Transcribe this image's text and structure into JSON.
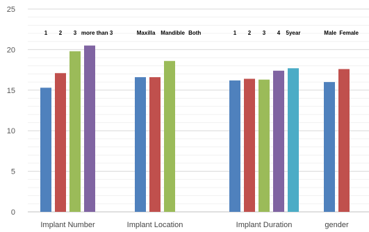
{
  "chart_data": {
    "type": "bar",
    "ylim": [
      0,
      25
    ],
    "yticks": [
      0,
      5,
      10,
      15,
      20,
      25
    ],
    "grid": true,
    "minor_grid": true,
    "xlabel": "",
    "ylabel": "",
    "title": "",
    "groups": [
      {
        "category": "Implant Number",
        "bars": [
          {
            "label": "1",
            "value": 15.3,
            "color": "#4F81BD"
          },
          {
            "label": "2",
            "value": 17.1,
            "color": "#C0504D"
          },
          {
            "label": "3",
            "value": 19.8,
            "color": "#9BBB59"
          },
          {
            "label": "more than 3",
            "value": 20.5,
            "color": "#8064A2"
          }
        ]
      },
      {
        "category": "Implant Location",
        "bars": [
          {
            "label": "Maxilla",
            "value": 16.6,
            "color": "#4F81BD"
          },
          {
            "label": "Mandible",
            "value": 16.6,
            "color": "#C0504D"
          },
          {
            "label": "Both",
            "value": 18.6,
            "color": "#9BBB59"
          }
        ]
      },
      {
        "category": "Implant Duration",
        "bars": [
          {
            "label": "1",
            "value": 16.2,
            "color": "#4F81BD"
          },
          {
            "label": "2",
            "value": 16.4,
            "color": "#C0504D"
          },
          {
            "label": "3",
            "value": 16.3,
            "color": "#9BBB59"
          },
          {
            "label": "4",
            "value": 17.4,
            "color": "#8064A2"
          },
          {
            "label": "5year",
            "value": 17.7,
            "color": "#4BACC6"
          }
        ]
      },
      {
        "category": "gender",
        "bars": [
          {
            "label": "Male",
            "value": 16.0,
            "color": "#4F81BD"
          },
          {
            "label": "Female",
            "value": 17.6,
            "color": "#C0504D"
          }
        ]
      }
    ]
  }
}
